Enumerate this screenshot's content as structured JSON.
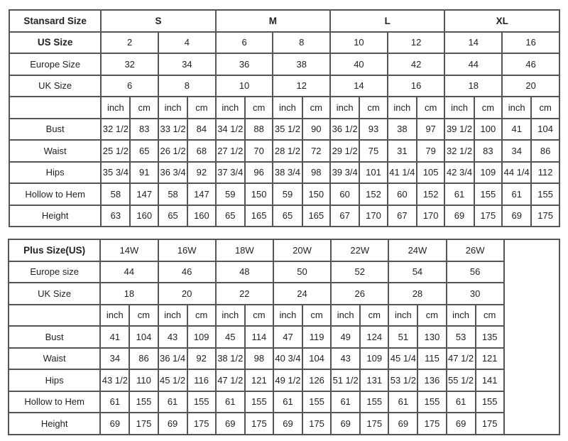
{
  "standard_table": {
    "header_label": "Stansard Size",
    "groups": [
      "S",
      "M",
      "L",
      "XL"
    ],
    "size_rows": [
      {
        "label": "US Size",
        "values": [
          "2",
          "4",
          "6",
          "8",
          "10",
          "12",
          "14",
          "16"
        ]
      },
      {
        "label": "Europe Size",
        "values": [
          "32",
          "34",
          "36",
          "38",
          "40",
          "42",
          "44",
          "46"
        ]
      },
      {
        "label": "UK Size",
        "values": [
          "6",
          "8",
          "10",
          "12",
          "14",
          "16",
          "18",
          "20"
        ]
      }
    ],
    "unit_headers": [
      "inch",
      "cm"
    ],
    "measurements": [
      {
        "label": "Bust",
        "values": [
          "32 1/2",
          "83",
          "33 1/2",
          "84",
          "34 1/2",
          "88",
          "35 1/2",
          "90",
          "36 1/2",
          "93",
          "38",
          "97",
          "39 1/2",
          "100",
          "41",
          "104"
        ]
      },
      {
        "label": "Waist",
        "values": [
          "25 1/2",
          "65",
          "26 1/2",
          "68",
          "27 1/2",
          "70",
          "28 1/2",
          "72",
          "29 1/2",
          "75",
          "31",
          "79",
          "32 1/2",
          "83",
          "34",
          "86"
        ]
      },
      {
        "label": "Hips",
        "values": [
          "35 3/4",
          "91",
          "36 3/4",
          "92",
          "37 3/4",
          "96",
          "38 3/4",
          "98",
          "39 3/4",
          "101",
          "41 1/4",
          "105",
          "42 3/4",
          "109",
          "44 1/4",
          "112"
        ]
      },
      {
        "label": "Hollow to Hem",
        "values": [
          "58",
          "147",
          "58",
          "147",
          "59",
          "150",
          "59",
          "150",
          "60",
          "152",
          "60",
          "152",
          "61",
          "155",
          "61",
          "155"
        ]
      },
      {
        "label": "Height",
        "values": [
          "63",
          "160",
          "65",
          "160",
          "65",
          "165",
          "65",
          "165",
          "67",
          "170",
          "67",
          "170",
          "69",
          "175",
          "69",
          "175"
        ]
      }
    ]
  },
  "plus_table": {
    "header_label": "Plus Size(US)",
    "sizes": [
      "14W",
      "16W",
      "18W",
      "20W",
      "22W",
      "24W",
      "26W"
    ],
    "size_rows": [
      {
        "label": "Europe size",
        "values": [
          "44",
          "46",
          "48",
          "50",
          "52",
          "54",
          "56"
        ]
      },
      {
        "label": "UK Size",
        "values": [
          "18",
          "20",
          "22",
          "24",
          "26",
          "28",
          "30"
        ]
      }
    ],
    "unit_headers": [
      "inch",
      "cm"
    ],
    "measurements": [
      {
        "label": "Bust",
        "values": [
          "41",
          "104",
          "43",
          "109",
          "45",
          "114",
          "47",
          "119",
          "49",
          "124",
          "51",
          "130",
          "53",
          "135"
        ]
      },
      {
        "label": "Waist",
        "values": [
          "34",
          "86",
          "36 1/4",
          "92",
          "38 1/2",
          "98",
          "40 3/4",
          "104",
          "43",
          "109",
          "45 1/4",
          "115",
          "47 1/2",
          "121"
        ]
      },
      {
        "label": "Hips",
        "values": [
          "43 1/2",
          "110",
          "45 1/2",
          "116",
          "47 1/2",
          "121",
          "49 1/2",
          "126",
          "51 1/2",
          "131",
          "53 1/2",
          "136",
          "55 1/2",
          "141"
        ]
      },
      {
        "label": "Hollow to Hem",
        "values": [
          "61",
          "155",
          "61",
          "155",
          "61",
          "155",
          "61",
          "155",
          "61",
          "155",
          "61",
          "155",
          "61",
          "155"
        ]
      },
      {
        "label": "Height",
        "values": [
          "69",
          "175",
          "69",
          "175",
          "69",
          "175",
          "69",
          "175",
          "69",
          "175",
          "69",
          "175",
          "69",
          "175"
        ]
      }
    ]
  }
}
